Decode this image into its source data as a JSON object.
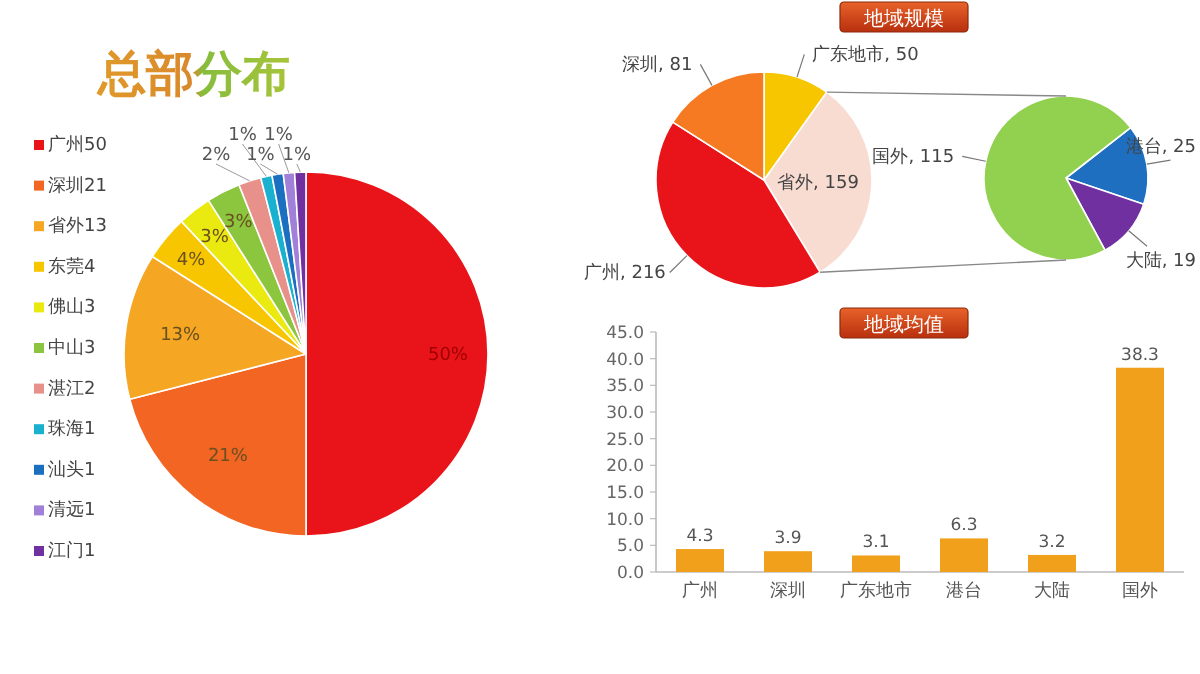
{
  "chart_data": [
    {
      "type": "pie",
      "title": "总部分布",
      "categories": [
        "广州50",
        "深圳21",
        "省外13",
        "东莞4",
        "佛山3",
        "中山3",
        "湛江2",
        "珠海1",
        "汕头1",
        "清远1",
        "江门1"
      ],
      "values": [
        50,
        21,
        13,
        4,
        3,
        3,
        2,
        1,
        1,
        1,
        1
      ],
      "value_labels": [
        "50%",
        "21%",
        "13%",
        "4%",
        "3%",
        "3%",
        "2%",
        "1%",
        "1%",
        "1%",
        "1%"
      ],
      "colors": [
        "#e8141a",
        "#f26522",
        "#f5a623",
        "#f7c600",
        "#eaea10",
        "#8cc63f",
        "#e8908a",
        "#1ab0d0",
        "#1a6fc0",
        "#a080d8",
        "#7030a0"
      ],
      "legend": "left"
    },
    {
      "type": "pie",
      "title": "地域规模",
      "categories": [
        "广东地市, 50",
        "省外, 159",
        "广州, 216",
        "深圳, 81"
      ],
      "values": [
        50,
        159,
        216,
        81
      ],
      "colors": [
        "#f7c600",
        "#f8dcd2",
        "#e8141a",
        "#f57a22"
      ]
    },
    {
      "type": "pie",
      "categories": [
        "港台, 25",
        "大陆, 19",
        "国外, 115"
      ],
      "values": [
        25,
        19,
        115
      ],
      "colors": [
        "#1f6fc0",
        "#7030a0",
        "#92d050"
      ]
    },
    {
      "type": "bar",
      "title": "地域均值",
      "categories": [
        "广州",
        "深圳",
        "广东地市",
        "港台",
        "大陆",
        "国外"
      ],
      "values": [
        4.3,
        3.9,
        3.1,
        6.3,
        3.2,
        38.3
      ],
      "color": "#f0a01a",
      "ylim": [
        0,
        45
      ],
      "yticks": [
        {
          "value": 0,
          "label": "0.0"
        },
        {
          "value": 5,
          "label": "5.0"
        },
        {
          "value": 10,
          "label": "10.0"
        },
        {
          "value": 15,
          "label": "15.0"
        },
        {
          "value": 20,
          "label": "20.0"
        },
        {
          "value": 25,
          "label": "25.0"
        },
        {
          "value": 30,
          "label": "30.0"
        },
        {
          "value": 35,
          "label": "35.0"
        },
        {
          "value": 40,
          "label": "40.0"
        },
        {
          "value": 45,
          "label": "45.0"
        }
      ],
      "data_labels": true
    }
  ]
}
